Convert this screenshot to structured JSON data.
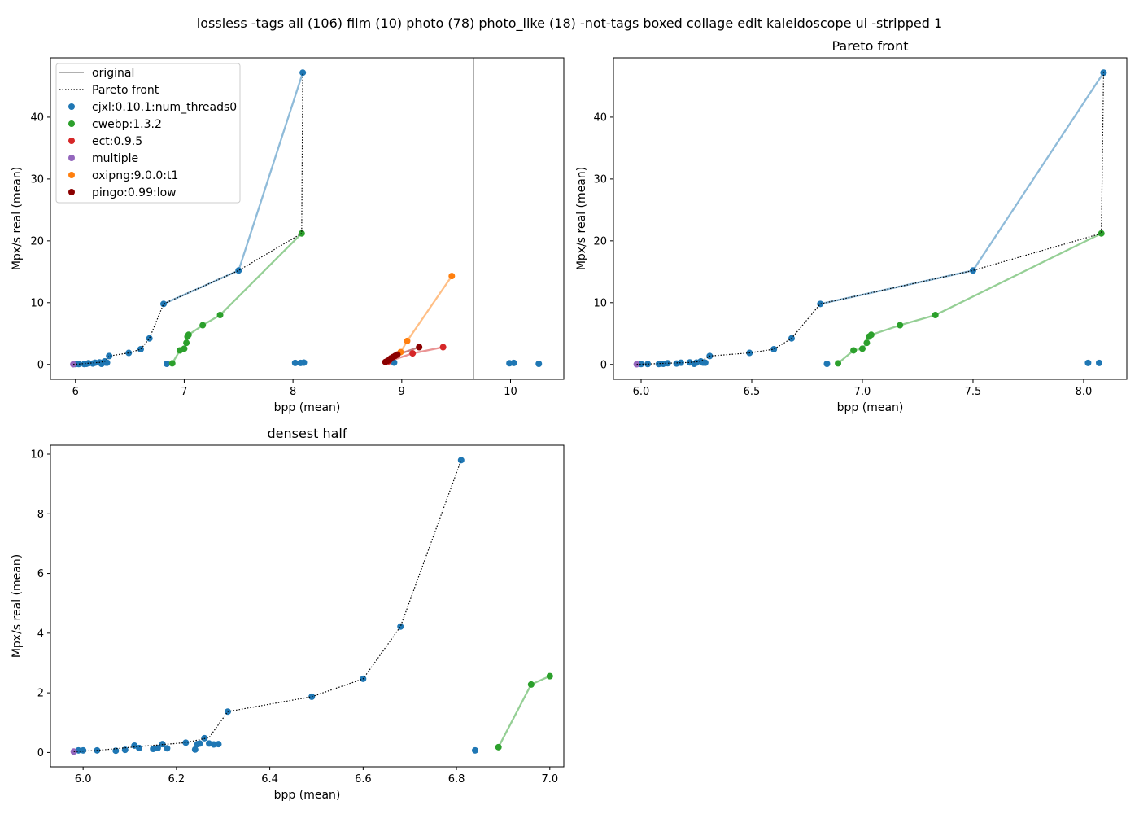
{
  "figure": {
    "suptitle": "lossless -tags all (106) film (10) photo (78) photo_like (18) -not-tags boxed collage edit kaleidoscope ui -stripped 1"
  },
  "series_styles": [
    {
      "name": "cjxl:0.10.1:num_threads0",
      "color": "#1f77b4"
    },
    {
      "name": "cwebp:1.3.2",
      "color": "#2ca02c"
    },
    {
      "name": "ect:0.9.5",
      "color": "#d62728"
    },
    {
      "name": "multiple",
      "color": "#9467bd"
    },
    {
      "name": "oxipng:9.0.0:t1",
      "color": "#ff7f0e"
    },
    {
      "name": "pingo:0.99:low",
      "color": "#8b0000"
    }
  ],
  "legend": {
    "placement": "top-left",
    "items": [
      {
        "label": "original",
        "kind": "line",
        "color": "#808080"
      },
      {
        "label": "Pareto front",
        "kind": "dotted",
        "color": "#000000"
      },
      {
        "label": "cjxl:0.10.1:num_threads0",
        "kind": "marker",
        "color": "#1f77b4"
      },
      {
        "label": "cwebp:1.3.2",
        "kind": "marker",
        "color": "#2ca02c"
      },
      {
        "label": "ect:0.9.5",
        "kind": "marker",
        "color": "#d62728"
      },
      {
        "label": "multiple",
        "kind": "marker",
        "color": "#9467bd"
      },
      {
        "label": "oxipng:9.0.0:t1",
        "kind": "marker",
        "color": "#ff7f0e"
      },
      {
        "label": "pingo:0.99:low",
        "kind": "marker",
        "color": "#8b0000"
      }
    ]
  },
  "chart_data": [
    {
      "id": "all",
      "type": "scatter",
      "title": "",
      "xlabel": "bpp (mean)",
      "ylabel": "Mpx/s real (mean)",
      "xlim": [
        5.77,
        10.49
      ],
      "ylim": [
        -2.4,
        49.6
      ],
      "xticks": [
        6,
        7,
        8,
        9,
        10
      ],
      "yticks": [
        0,
        10,
        20,
        30,
        40
      ],
      "original_x": 9.66,
      "pareto": [
        [
          5.98,
          0.03
        ],
        [
          6.03,
          0.07
        ],
        [
          6.12,
          0.2
        ],
        [
          6.22,
          0.33
        ],
        [
          6.27,
          0.5
        ],
        [
          6.31,
          1.37
        ],
        [
          6.49,
          1.87
        ],
        [
          6.6,
          2.47
        ],
        [
          6.68,
          4.22
        ],
        [
          6.81,
          9.8
        ],
        [
          7.5,
          15.2
        ],
        [
          8.08,
          21.2
        ],
        [
          8.09,
          47.2
        ]
      ],
      "series": [
        {
          "name": "cjxl:0.10.1:num_threads0",
          "connect": [
            [
              6.81,
              9.8
            ],
            [
              7.5,
              15.2
            ],
            [
              8.09,
              47.2
            ]
          ],
          "points": [
            [
              6.0,
              0.07
            ],
            [
              6.03,
              0.07
            ],
            [
              6.08,
              0.06
            ],
            [
              6.1,
              0.1
            ],
            [
              6.12,
              0.2
            ],
            [
              6.16,
              0.15
            ],
            [
              6.18,
              0.28
            ],
            [
              6.22,
              0.33
            ],
            [
              6.24,
              0.1
            ],
            [
              6.25,
              0.3
            ],
            [
              6.27,
              0.5
            ],
            [
              6.28,
              0.3
            ],
            [
              6.29,
              0.28
            ],
            [
              6.31,
              1.37
            ],
            [
              6.49,
              1.87
            ],
            [
              6.6,
              2.47
            ],
            [
              6.68,
              4.22
            ],
            [
              6.81,
              9.8
            ],
            [
              7.5,
              15.2
            ],
            [
              8.09,
              47.2
            ],
            [
              6.84,
              0.1
            ],
            [
              8.02,
              0.25
            ],
            [
              8.07,
              0.25
            ],
            [
              8.1,
              0.3
            ],
            [
              8.93,
              0.3
            ],
            [
              9.99,
              0.2
            ],
            [
              10.03,
              0.25
            ],
            [
              10.26,
              0.1
            ]
          ]
        },
        {
          "name": "cwebp:1.3.2",
          "connect": [
            [
              6.89,
              0.18
            ],
            [
              6.96,
              2.28
            ],
            [
              7.0,
              2.56
            ],
            [
              7.02,
              3.5
            ],
            [
              7.03,
              4.5
            ],
            [
              7.04,
              4.8
            ],
            [
              7.17,
              6.35
            ],
            [
              7.33,
              8.0
            ],
            [
              8.08,
              21.2
            ]
          ],
          "points": [
            [
              6.89,
              0.18
            ],
            [
              6.96,
              2.28
            ],
            [
              7.0,
              2.56
            ],
            [
              7.02,
              3.5
            ],
            [
              7.03,
              4.5
            ],
            [
              7.04,
              4.8
            ],
            [
              7.17,
              6.35
            ],
            [
              7.33,
              8.0
            ],
            [
              8.08,
              21.2
            ]
          ]
        },
        {
          "name": "ect:0.9.5",
          "connect": [
            [
              8.88,
              0.5
            ],
            [
              9.1,
              1.8
            ],
            [
              9.38,
              2.8
            ]
          ],
          "points": [
            [
              8.88,
              0.5
            ],
            [
              9.1,
              1.8
            ],
            [
              9.38,
              2.8
            ]
          ]
        },
        {
          "name": "multiple",
          "connect": [],
          "points": [
            [
              5.98,
              0.03
            ]
          ]
        },
        {
          "name": "oxipng:9.0.0:t1",
          "connect": [
            [
              8.99,
              2.0
            ],
            [
              9.05,
              3.8
            ],
            [
              9.46,
              14.3
            ]
          ],
          "points": [
            [
              8.99,
              2.0
            ],
            [
              9.05,
              3.8
            ],
            [
              9.46,
              14.3
            ]
          ]
        },
        {
          "name": "pingo:0.99:low",
          "connect": [
            [
              8.85,
              0.4
            ],
            [
              8.87,
              0.6
            ],
            [
              8.89,
              0.8
            ],
            [
              8.9,
              1.0
            ],
            [
              8.92,
              1.2
            ],
            [
              8.94,
              1.4
            ],
            [
              8.96,
              1.6
            ],
            [
              9.16,
              2.8
            ]
          ],
          "points": [
            [
              8.85,
              0.4
            ],
            [
              8.87,
              0.6
            ],
            [
              8.89,
              0.8
            ],
            [
              8.9,
              1.0
            ],
            [
              8.92,
              1.2
            ],
            [
              8.94,
              1.4
            ],
            [
              8.96,
              1.6
            ],
            [
              9.16,
              2.8
            ]
          ]
        }
      ]
    },
    {
      "id": "pareto",
      "type": "scatter",
      "title": "Pareto front",
      "xlabel": "bpp (mean)",
      "ylabel": "Mpx/s real (mean)",
      "xlim": [
        5.875,
        8.195
      ],
      "ylim": [
        -2.4,
        49.6
      ],
      "xticks": [
        6.0,
        6.5,
        7.0,
        7.5,
        8.0
      ],
      "yticks": [
        0,
        10,
        20,
        30,
        40
      ],
      "pareto": [
        [
          5.98,
          0.03
        ],
        [
          6.03,
          0.07
        ],
        [
          6.12,
          0.2
        ],
        [
          6.22,
          0.33
        ],
        [
          6.27,
          0.5
        ],
        [
          6.31,
          1.37
        ],
        [
          6.49,
          1.87
        ],
        [
          6.6,
          2.47
        ],
        [
          6.68,
          4.22
        ],
        [
          6.81,
          9.8
        ],
        [
          7.5,
          15.2
        ],
        [
          8.08,
          21.2
        ],
        [
          8.09,
          47.2
        ]
      ],
      "series": [
        {
          "name": "cjxl:0.10.1:num_threads0",
          "connect": [
            [
              6.81,
              9.8
            ],
            [
              7.5,
              15.2
            ],
            [
              8.09,
              47.2
            ]
          ],
          "points": [
            [
              6.0,
              0.07
            ],
            [
              6.03,
              0.07
            ],
            [
              6.08,
              0.06
            ],
            [
              6.1,
              0.1
            ],
            [
              6.12,
              0.2
            ],
            [
              6.16,
              0.15
            ],
            [
              6.18,
              0.28
            ],
            [
              6.22,
              0.33
            ],
            [
              6.24,
              0.1
            ],
            [
              6.25,
              0.3
            ],
            [
              6.27,
              0.5
            ],
            [
              6.28,
              0.3
            ],
            [
              6.29,
              0.28
            ],
            [
              6.31,
              1.37
            ],
            [
              6.49,
              1.87
            ],
            [
              6.6,
              2.47
            ],
            [
              6.68,
              4.22
            ],
            [
              6.81,
              9.8
            ],
            [
              7.5,
              15.2
            ],
            [
              8.09,
              47.2
            ],
            [
              6.84,
              0.1
            ],
            [
              8.02,
              0.25
            ],
            [
              8.07,
              0.25
            ]
          ]
        },
        {
          "name": "cwebp:1.3.2",
          "connect": [
            [
              6.89,
              0.18
            ],
            [
              6.96,
              2.28
            ],
            [
              7.0,
              2.56
            ],
            [
              7.02,
              3.5
            ],
            [
              7.03,
              4.5
            ],
            [
              7.04,
              4.8
            ],
            [
              7.17,
              6.35
            ],
            [
              7.33,
              8.0
            ],
            [
              8.08,
              21.2
            ]
          ],
          "points": [
            [
              6.89,
              0.18
            ],
            [
              6.96,
              2.28
            ],
            [
              7.0,
              2.56
            ],
            [
              7.02,
              3.5
            ],
            [
              7.03,
              4.5
            ],
            [
              7.04,
              4.8
            ],
            [
              7.17,
              6.35
            ],
            [
              7.33,
              8.0
            ],
            [
              8.08,
              21.2
            ]
          ]
        },
        {
          "name": "multiple",
          "connect": [],
          "points": [
            [
              5.98,
              0.03
            ]
          ]
        }
      ]
    },
    {
      "id": "densest",
      "type": "scatter",
      "title": "densest half",
      "xlabel": "bpp (mean)",
      "ylabel": "Mpx/s real (mean)",
      "xlim": [
        5.93,
        7.03
      ],
      "ylim": [
        -0.48,
        10.3
      ],
      "xticks": [
        6.0,
        6.2,
        6.4,
        6.6,
        6.8,
        7.0
      ],
      "yticks": [
        0,
        2,
        4,
        6,
        8,
        10
      ],
      "pareto": [
        [
          5.98,
          0.03
        ],
        [
          6.03,
          0.07
        ],
        [
          6.12,
          0.2
        ],
        [
          6.22,
          0.33
        ],
        [
          6.27,
          0.5
        ],
        [
          6.31,
          1.37
        ],
        [
          6.49,
          1.87
        ],
        [
          6.6,
          2.47
        ],
        [
          6.68,
          4.22
        ],
        [
          6.81,
          9.8
        ]
      ],
      "series": [
        {
          "name": "cjxl:0.10.1:num_threads0",
          "connect": [],
          "points": [
            [
              5.99,
              0.07
            ],
            [
              6.0,
              0.07
            ],
            [
              6.03,
              0.07
            ],
            [
              6.07,
              0.06
            ],
            [
              6.09,
              0.09
            ],
            [
              6.11,
              0.23
            ],
            [
              6.12,
              0.15
            ],
            [
              6.15,
              0.12
            ],
            [
              6.16,
              0.15
            ],
            [
              6.17,
              0.28
            ],
            [
              6.18,
              0.14
            ],
            [
              6.22,
              0.33
            ],
            [
              6.24,
              0.1
            ],
            [
              6.245,
              0.28
            ],
            [
              6.25,
              0.3
            ],
            [
              6.26,
              0.48
            ],
            [
              6.27,
              0.3
            ],
            [
              6.28,
              0.27
            ],
            [
              6.29,
              0.28
            ],
            [
              6.31,
              1.37
            ],
            [
              6.49,
              1.87
            ],
            [
              6.6,
              2.47
            ],
            [
              6.68,
              4.22
            ],
            [
              6.81,
              9.8
            ],
            [
              6.84,
              0.07
            ]
          ]
        },
        {
          "name": "cwebp:1.3.2",
          "connect": [
            [
              6.89,
              0.18
            ],
            [
              6.96,
              2.28
            ],
            [
              7.0,
              2.56
            ]
          ],
          "points": [
            [
              6.89,
              0.18
            ],
            [
              6.96,
              2.28
            ],
            [
              7.0,
              2.56
            ]
          ]
        },
        {
          "name": "multiple",
          "connect": [],
          "points": [
            [
              5.98,
              0.03
            ]
          ]
        }
      ]
    }
  ]
}
